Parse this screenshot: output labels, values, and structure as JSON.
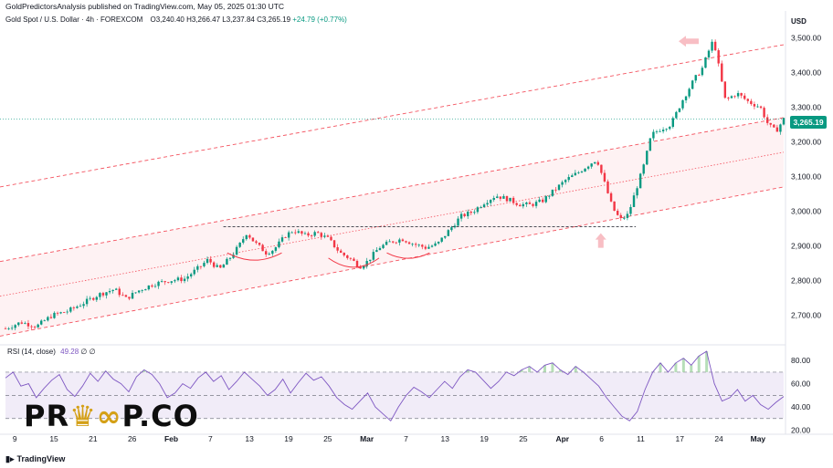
{
  "header": {
    "published_line": "GoldPredictorsAnalysis published on TradingView.com, May 05, 2025 01:30 UTC"
  },
  "symbol": {
    "name": "Gold Spot / U.S. Dollar · 4h · FOREXCOM",
    "open": "O3,240.40",
    "high": "H3,266.47",
    "low": "L3,237.84",
    "close": "C3,265.19",
    "change": "+24.79 (+0.77%)"
  },
  "currency_label": "USD",
  "last_price_label": "3,265.19",
  "rsi_legend": {
    "label": "RSI (14, close)",
    "value": "49.28",
    "extra": "∅ ∅"
  },
  "footer": {
    "brand": "TradingView",
    "icon": "tradingview-logo-icon"
  },
  "watermark": {
    "text_part1": "PR",
    "text_part2": "P.CO",
    "icon": "crown-glasses-icon"
  },
  "colors": {
    "up_candle": "#089981",
    "down_candle": "#f23645",
    "channel": "#f23645",
    "rsi_line": "#7e57c2",
    "rsi_band": "#ede7f6",
    "price_tag": "#089981"
  },
  "chart_data": [
    {
      "type": "candlestick",
      "title": "Gold Spot / U.S. Dollar · 4h · FOREXCOM",
      "y_axis": {
        "label": "USD",
        "range": [
          2620,
          3530
        ],
        "ticks": [
          2700,
          2800,
          2900,
          3000,
          3100,
          3200,
          3300,
          3400,
          3500
        ],
        "tick_labels": [
          "2,700.00",
          "2,800.00",
          "2,900.00",
          "3,000.00",
          "3,100.00",
          "3,200.00",
          "3,300.00",
          "3,400.00",
          "3,500.00"
        ],
        "position": "right"
      },
      "x_axis": {
        "tick_labels": [
          "9",
          "15",
          "21",
          "26",
          "Feb",
          "7",
          "13",
          "19",
          "25",
          "Mar",
          "7",
          "13",
          "19",
          "25",
          "Apr",
          "6",
          "11",
          "17",
          "24",
          "May"
        ]
      },
      "price_path_close": [
        [
          0,
          2662
        ],
        [
          0.02,
          2680
        ],
        [
          0.04,
          2668
        ],
        [
          0.06,
          2700
        ],
        [
          0.08,
          2712
        ],
        [
          0.1,
          2735
        ],
        [
          0.12,
          2760
        ],
        [
          0.14,
          2775
        ],
        [
          0.155,
          2748
        ],
        [
          0.17,
          2770
        ],
        [
          0.19,
          2790
        ],
        [
          0.21,
          2800
        ],
        [
          0.23,
          2805
        ],
        [
          0.25,
          2840
        ],
        [
          0.26,
          2860
        ],
        [
          0.275,
          2832
        ],
        [
          0.29,
          2870
        ],
        [
          0.3,
          2900
        ],
        [
          0.31,
          2938
        ],
        [
          0.32,
          2910
        ],
        [
          0.335,
          2880
        ],
        [
          0.345,
          2890
        ],
        [
          0.36,
          2930
        ],
        [
          0.37,
          2945
        ],
        [
          0.385,
          2930
        ],
        [
          0.4,
          2938
        ],
        [
          0.415,
          2920
        ],
        [
          0.43,
          2880
        ],
        [
          0.445,
          2860
        ],
        [
          0.455,
          2840
        ],
        [
          0.465,
          2855
        ],
        [
          0.48,
          2895
        ],
        [
          0.495,
          2912
        ],
        [
          0.51,
          2920
        ],
        [
          0.525,
          2905
        ],
        [
          0.54,
          2895
        ],
        [
          0.555,
          2905
        ],
        [
          0.57,
          2945
        ],
        [
          0.585,
          2985
        ],
        [
          0.6,
          2998
        ],
        [
          0.615,
          3025
        ],
        [
          0.63,
          3045
        ],
        [
          0.645,
          3035
        ],
        [
          0.66,
          3020
        ],
        [
          0.675,
          3018
        ],
        [
          0.69,
          3030
        ],
        [
          0.705,
          3060
        ],
        [
          0.72,
          3090
        ],
        [
          0.735,
          3110
        ],
        [
          0.75,
          3135
        ],
        [
          0.76,
          3150
        ],
        [
          0.77,
          3080
        ],
        [
          0.78,
          3010
        ],
        [
          0.79,
          2975
        ],
        [
          0.8,
          2990
        ],
        [
          0.81,
          3060
        ],
        [
          0.82,
          3130
        ],
        [
          0.83,
          3220
        ],
        [
          0.84,
          3235
        ],
        [
          0.855,
          3250
        ],
        [
          0.87,
          3320
        ],
        [
          0.885,
          3380
        ],
        [
          0.895,
          3410
        ],
        [
          0.905,
          3470
        ],
        [
          0.91,
          3495
        ],
        [
          0.918,
          3400
        ],
        [
          0.925,
          3320
        ],
        [
          0.94,
          3340
        ],
        [
          0.955,
          3315
        ],
        [
          0.97,
          3300
        ],
        [
          0.98,
          3250
        ],
        [
          0.99,
          3230
        ],
        [
          1,
          3265.19
        ]
      ],
      "channel": {
        "upper": {
          "start": 3070,
          "end": 3480
        },
        "middle_upper": {
          "start": 2855,
          "end": 3270
        },
        "middle_dotted": {
          "start": 2755,
          "end": 3170
        },
        "lower": {
          "start": 2640,
          "end": 3070
        }
      },
      "resistance_level": 2955,
      "last_price": 3265.19
    },
    {
      "type": "line",
      "title": "RSI (14, close)",
      "y_axis": {
        "range": [
          18,
          92
        ],
        "ticks": [
          20,
          40,
          60,
          80
        ],
        "tick_labels": [
          "20.00",
          "40.00",
          "60.00",
          "80.00"
        ],
        "position": "right"
      },
      "bands": {
        "upper": 70,
        "middle": 50,
        "lower": 30
      },
      "series": [
        {
          "values": [
            65,
            70,
            58,
            60,
            48,
            56,
            63,
            68,
            55,
            49,
            58,
            69,
            62,
            71,
            64,
            60,
            53,
            66,
            72,
            68,
            60,
            48,
            52,
            60,
            56,
            65,
            70,
            62,
            67,
            55,
            62,
            70,
            64,
            58,
            50,
            55,
            64,
            52,
            61,
            69,
            63,
            66,
            58,
            48,
            42,
            38,
            45,
            52,
            40,
            34,
            28,
            40,
            50,
            57,
            53,
            48,
            55,
            62,
            56,
            66,
            72,
            70,
            63,
            56,
            62,
            70,
            67,
            72,
            75,
            70,
            76,
            78,
            72,
            68,
            75,
            70,
            64,
            58,
            48,
            40,
            32,
            28,
            36,
            55,
            70,
            78,
            70,
            78,
            82,
            76,
            84,
            88,
            60,
            45,
            48,
            55,
            45,
            50,
            42,
            38,
            44,
            49
          ]
        }
      ],
      "last_value": 49.28
    }
  ]
}
